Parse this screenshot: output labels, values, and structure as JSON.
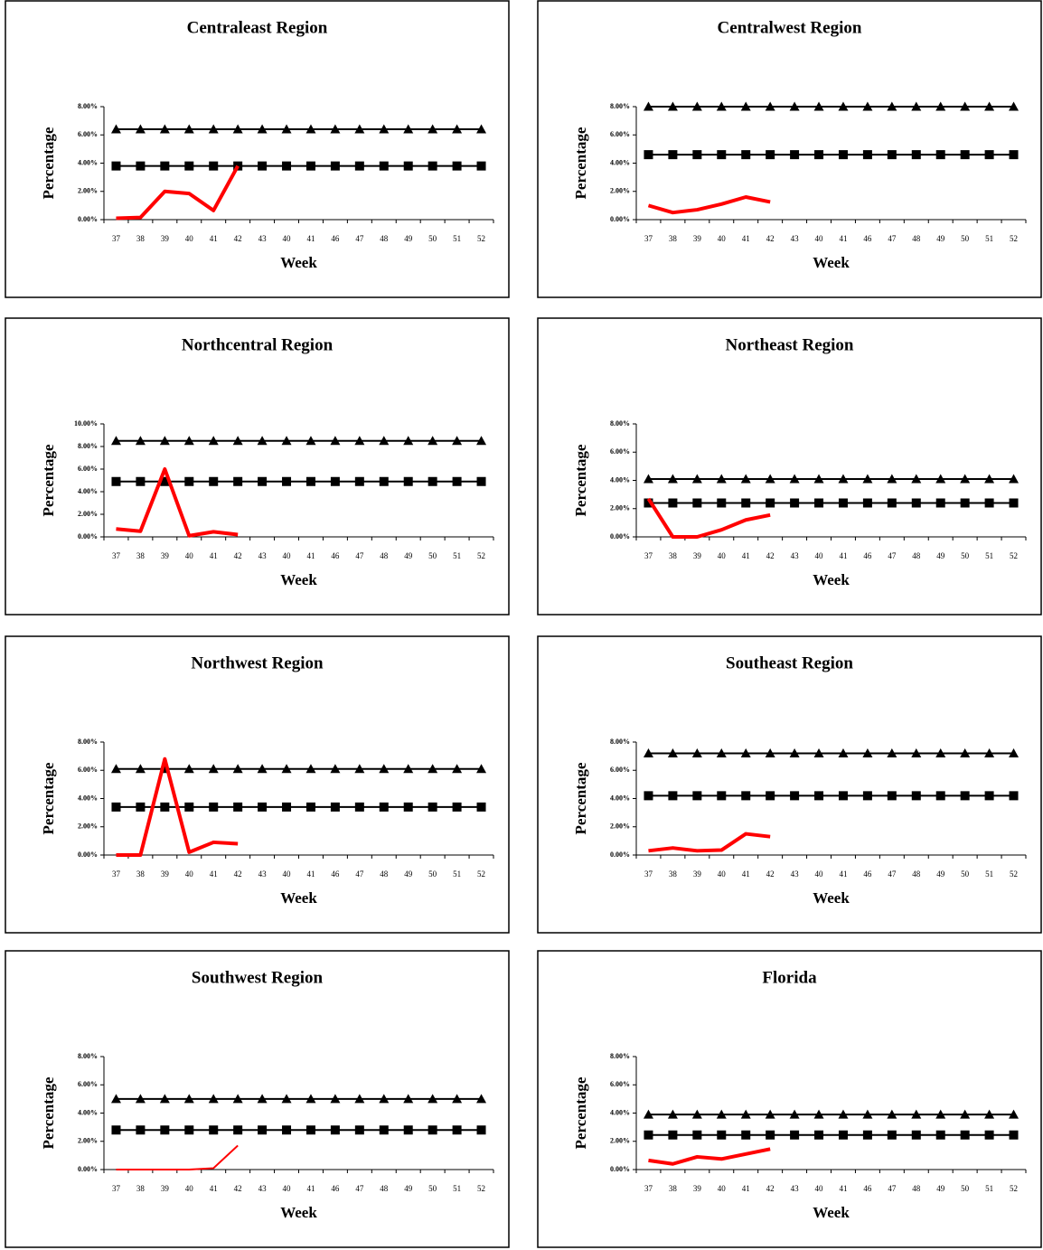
{
  "chart_data": [
    {
      "type": "line",
      "title": "Centraleast Region",
      "x_label": "Week",
      "y_label": "Percentage",
      "categories": [
        "37",
        "38",
        "39",
        "40",
        "41",
        "42",
        "43",
        "40",
        "41",
        "46",
        "47",
        "48",
        "49",
        "50",
        "51",
        "52"
      ],
      "ylim": [
        0,
        8
      ],
      "yticks": [
        {
          "value": 0,
          "label": "0.00%"
        },
        {
          "value": 2,
          "label": "2.00%"
        },
        {
          "value": 4,
          "label": "4.00%"
        },
        {
          "value": 6,
          "label": "6.00%"
        },
        {
          "value": 8,
          "label": "8.00%"
        }
      ],
      "series": [
        {
          "color": "#000000",
          "marker": "triangle",
          "line_width": 2,
          "values": [
            6.4,
            6.4,
            6.4,
            6.4,
            6.4,
            6.4,
            6.4,
            6.4,
            6.4,
            6.4,
            6.4,
            6.4,
            6.4,
            6.4,
            6.4,
            6.4
          ]
        },
        {
          "color": "#000000",
          "marker": "square",
          "line_width": 2,
          "values": [
            3.8,
            3.8,
            3.8,
            3.8,
            3.8,
            3.8,
            3.8,
            3.8,
            3.8,
            3.8,
            3.8,
            3.8,
            3.8,
            3.8,
            3.8,
            3.8
          ]
        },
        {
          "color": "#ff0000",
          "line_width": 4,
          "values": [
            0.1,
            0.15,
            2.0,
            1.85,
            0.65,
            3.8,
            null,
            null,
            null,
            null,
            null,
            null,
            null,
            null,
            null,
            null
          ]
        }
      ]
    },
    {
      "type": "line",
      "title": "Centralwest Region",
      "x_label": "Week",
      "y_label": "Percentage",
      "categories": [
        "37",
        "38",
        "39",
        "40",
        "41",
        "42",
        "43",
        "40",
        "41",
        "46",
        "47",
        "48",
        "49",
        "50",
        "51",
        "52"
      ],
      "ylim": [
        0,
        8
      ],
      "yticks": [
        {
          "value": 0,
          "label": "0.00%"
        },
        {
          "value": 2,
          "label": "2.00%"
        },
        {
          "value": 4,
          "label": "4.00%"
        },
        {
          "value": 6,
          "label": "6.00%"
        },
        {
          "value": 8,
          "label": "8.00%"
        }
      ],
      "series": [
        {
          "color": "#000000",
          "marker": "triangle",
          "line_width": 2,
          "values": [
            8.0,
            8.0,
            8.0,
            8.0,
            8.0,
            8.0,
            8.0,
            8.0,
            8.0,
            8.0,
            8.0,
            8.0,
            8.0,
            8.0,
            8.0,
            8.0
          ]
        },
        {
          "color": "#000000",
          "marker": "square",
          "line_width": 2,
          "values": [
            4.6,
            4.6,
            4.6,
            4.6,
            4.6,
            4.6,
            4.6,
            4.6,
            4.6,
            4.6,
            4.6,
            4.6,
            4.6,
            4.6,
            4.6,
            4.6
          ]
        },
        {
          "color": "#ff0000",
          "line_width": 4,
          "values": [
            1.0,
            0.5,
            0.7,
            1.1,
            1.6,
            1.25,
            null,
            null,
            null,
            null,
            null,
            null,
            null,
            null,
            null,
            null
          ]
        }
      ]
    },
    {
      "type": "line",
      "title": "Northcentral Region",
      "x_label": "Week",
      "y_label": "Percentage",
      "categories": [
        "37",
        "38",
        "39",
        "40",
        "41",
        "42",
        "43",
        "40",
        "41",
        "46",
        "47",
        "48",
        "49",
        "50",
        "51",
        "52"
      ],
      "ylim": [
        0,
        10
      ],
      "yticks": [
        {
          "value": 0,
          "label": "0.00%"
        },
        {
          "value": 2,
          "label": "2.00%"
        },
        {
          "value": 4,
          "label": "4.00%"
        },
        {
          "value": 6,
          "label": "6.00%"
        },
        {
          "value": 8,
          "label": "8.00%"
        },
        {
          "value": 10,
          "label": "10.00%"
        }
      ],
      "series": [
        {
          "color": "#000000",
          "marker": "triangle",
          "line_width": 2,
          "values": [
            8.5,
            8.5,
            8.5,
            8.5,
            8.5,
            8.5,
            8.5,
            8.5,
            8.5,
            8.5,
            8.5,
            8.5,
            8.5,
            8.5,
            8.5,
            8.5
          ]
        },
        {
          "color": "#000000",
          "marker": "square",
          "line_width": 2,
          "values": [
            4.9,
            4.9,
            4.9,
            4.9,
            4.9,
            4.9,
            4.9,
            4.9,
            4.9,
            4.9,
            4.9,
            4.9,
            4.9,
            4.9,
            4.9,
            4.9
          ]
        },
        {
          "color": "#ff0000",
          "line_width": 4,
          "values": [
            0.7,
            0.5,
            6.0,
            0.1,
            0.45,
            0.2,
            null,
            null,
            null,
            null,
            null,
            null,
            null,
            null,
            null,
            null
          ]
        }
      ]
    },
    {
      "type": "line",
      "title": "Northeast Region",
      "x_label": "Week",
      "y_label": "Percentage",
      "categories": [
        "37",
        "38",
        "39",
        "40",
        "41",
        "42",
        "43",
        "40",
        "41",
        "46",
        "47",
        "48",
        "49",
        "50",
        "51",
        "52"
      ],
      "ylim": [
        0,
        8
      ],
      "yticks": [
        {
          "value": 0,
          "label": "0.00%"
        },
        {
          "value": 2,
          "label": "2.00%"
        },
        {
          "value": 4,
          "label": "4.00%"
        },
        {
          "value": 6,
          "label": "6.00%"
        },
        {
          "value": 8,
          "label": "8.00%"
        }
      ],
      "series": [
        {
          "color": "#000000",
          "marker": "triangle",
          "line_width": 2,
          "values": [
            4.1,
            4.1,
            4.1,
            4.1,
            4.1,
            4.1,
            4.1,
            4.1,
            4.1,
            4.1,
            4.1,
            4.1,
            4.1,
            4.1,
            4.1,
            4.1
          ]
        },
        {
          "color": "#000000",
          "marker": "square",
          "line_width": 2,
          "values": [
            2.4,
            2.4,
            2.4,
            2.4,
            2.4,
            2.4,
            2.4,
            2.4,
            2.4,
            2.4,
            2.4,
            2.4,
            2.4,
            2.4,
            2.4,
            2.4
          ]
        },
        {
          "color": "#ff0000",
          "line_width": 4,
          "values": [
            2.7,
            0.0,
            0.0,
            0.5,
            1.2,
            1.55,
            null,
            null,
            null,
            null,
            null,
            null,
            null,
            null,
            null,
            null
          ]
        }
      ]
    },
    {
      "type": "line",
      "title": "Northwest Region",
      "x_label": "Week",
      "y_label": "Percentage",
      "categories": [
        "37",
        "38",
        "39",
        "40",
        "41",
        "42",
        "43",
        "40",
        "41",
        "46",
        "47",
        "48",
        "49",
        "50",
        "51",
        "52"
      ],
      "ylim": [
        0,
        8
      ],
      "yticks": [
        {
          "value": 0,
          "label": "0.00%"
        },
        {
          "value": 2,
          "label": "2.00%"
        },
        {
          "value": 4,
          "label": "4.00%"
        },
        {
          "value": 6,
          "label": "6.00%"
        },
        {
          "value": 8,
          "label": "8.00%"
        }
      ],
      "series": [
        {
          "color": "#000000",
          "marker": "triangle",
          "line_width": 2,
          "values": [
            6.1,
            6.1,
            6.1,
            6.1,
            6.1,
            6.1,
            6.1,
            6.1,
            6.1,
            6.1,
            6.1,
            6.1,
            6.1,
            6.1,
            6.1,
            6.1
          ]
        },
        {
          "color": "#000000",
          "marker": "square",
          "line_width": 2,
          "values": [
            3.4,
            3.4,
            3.4,
            3.4,
            3.4,
            3.4,
            3.4,
            3.4,
            3.4,
            3.4,
            3.4,
            3.4,
            3.4,
            3.4,
            3.4,
            3.4
          ]
        },
        {
          "color": "#ff0000",
          "line_width": 4,
          "values": [
            0.0,
            0.0,
            6.8,
            0.2,
            0.9,
            0.8,
            null,
            null,
            null,
            null,
            null,
            null,
            null,
            null,
            null,
            null
          ]
        }
      ]
    },
    {
      "type": "line",
      "title": "Southeast Region",
      "x_label": "Week",
      "y_label": "Percentage",
      "categories": [
        "37",
        "38",
        "39",
        "40",
        "41",
        "42",
        "43",
        "40",
        "41",
        "46",
        "47",
        "48",
        "49",
        "50",
        "51",
        "52"
      ],
      "ylim": [
        0,
        8
      ],
      "yticks": [
        {
          "value": 0,
          "label": "0.00%"
        },
        {
          "value": 2,
          "label": "2.00%"
        },
        {
          "value": 4,
          "label": "4.00%"
        },
        {
          "value": 6,
          "label": "6.00%"
        },
        {
          "value": 8,
          "label": "8.00%"
        }
      ],
      "series": [
        {
          "color": "#000000",
          "marker": "triangle",
          "line_width": 2,
          "values": [
            7.2,
            7.2,
            7.2,
            7.2,
            7.2,
            7.2,
            7.2,
            7.2,
            7.2,
            7.2,
            7.2,
            7.2,
            7.2,
            7.2,
            7.2,
            7.2
          ]
        },
        {
          "color": "#000000",
          "marker": "square",
          "line_width": 2,
          "values": [
            4.2,
            4.2,
            4.2,
            4.2,
            4.2,
            4.2,
            4.2,
            4.2,
            4.2,
            4.2,
            4.2,
            4.2,
            4.2,
            4.2,
            4.2,
            4.2
          ]
        },
        {
          "color": "#ff0000",
          "line_width": 4,
          "values": [
            0.3,
            0.5,
            0.3,
            0.35,
            1.5,
            1.3,
            null,
            null,
            null,
            null,
            null,
            null,
            null,
            null,
            null,
            null
          ]
        }
      ]
    },
    {
      "type": "line",
      "title": "Southwest Region",
      "x_label": "Week",
      "y_label": "Percentage",
      "categories": [
        "37",
        "38",
        "39",
        "40",
        "41",
        "42",
        "43",
        "40",
        "41",
        "46",
        "47",
        "48",
        "49",
        "50",
        "51",
        "52"
      ],
      "ylim": [
        0,
        8
      ],
      "yticks": [
        {
          "value": 0,
          "label": "0.00%"
        },
        {
          "value": 2,
          "label": "2.00%"
        },
        {
          "value": 4,
          "label": "4.00%"
        },
        {
          "value": 6,
          "label": "6.00%"
        },
        {
          "value": 8,
          "label": "8.00%"
        }
      ],
      "series": [
        {
          "color": "#000000",
          "marker": "triangle",
          "line_width": 2,
          "values": [
            5.0,
            5.0,
            5.0,
            5.0,
            5.0,
            5.0,
            5.0,
            5.0,
            5.0,
            5.0,
            5.0,
            5.0,
            5.0,
            5.0,
            5.0,
            5.0
          ]
        },
        {
          "color": "#000000",
          "marker": "square",
          "line_width": 2,
          "values": [
            2.8,
            2.8,
            2.8,
            2.8,
            2.8,
            2.8,
            2.8,
            2.8,
            2.8,
            2.8,
            2.8,
            2.8,
            2.8,
            2.8,
            2.8,
            2.8
          ]
        },
        {
          "color": "#ff0000",
          "line_width": 2,
          "values": [
            0.0,
            0.0,
            0.0,
            0.0,
            0.1,
            1.7,
            null,
            null,
            null,
            null,
            null,
            null,
            null,
            null,
            null,
            null
          ]
        }
      ]
    },
    {
      "type": "line",
      "title": "Florida",
      "x_label": "Week",
      "y_label": "Percentage",
      "categories": [
        "37",
        "38",
        "39",
        "40",
        "41",
        "42",
        "43",
        "40",
        "41",
        "46",
        "47",
        "48",
        "49",
        "50",
        "51",
        "52"
      ],
      "ylim": [
        0,
        8
      ],
      "yticks": [
        {
          "value": 0,
          "label": "0.00%"
        },
        {
          "value": 2,
          "label": "2.00%"
        },
        {
          "value": 4,
          "label": "4.00%"
        },
        {
          "value": 6,
          "label": "6.00%"
        },
        {
          "value": 8,
          "label": "8.00%"
        }
      ],
      "series": [
        {
          "color": "#000000",
          "marker": "triangle",
          "line_width": 2,
          "values": [
            3.9,
            3.9,
            3.9,
            3.9,
            3.9,
            3.9,
            3.9,
            3.9,
            3.9,
            3.9,
            3.9,
            3.9,
            3.9,
            3.9,
            3.9,
            3.9
          ]
        },
        {
          "color": "#000000",
          "marker": "square",
          "line_width": 2,
          "values": [
            2.45,
            2.45,
            2.45,
            2.45,
            2.45,
            2.45,
            2.45,
            2.45,
            2.45,
            2.45,
            2.45,
            2.45,
            2.45,
            2.45,
            2.45,
            2.45
          ]
        },
        {
          "color": "#ff0000",
          "line_width": 4,
          "values": [
            0.65,
            0.4,
            0.9,
            0.75,
            1.1,
            1.45,
            null,
            null,
            null,
            null,
            null,
            null,
            null,
            null,
            null,
            null
          ]
        }
      ]
    }
  ]
}
